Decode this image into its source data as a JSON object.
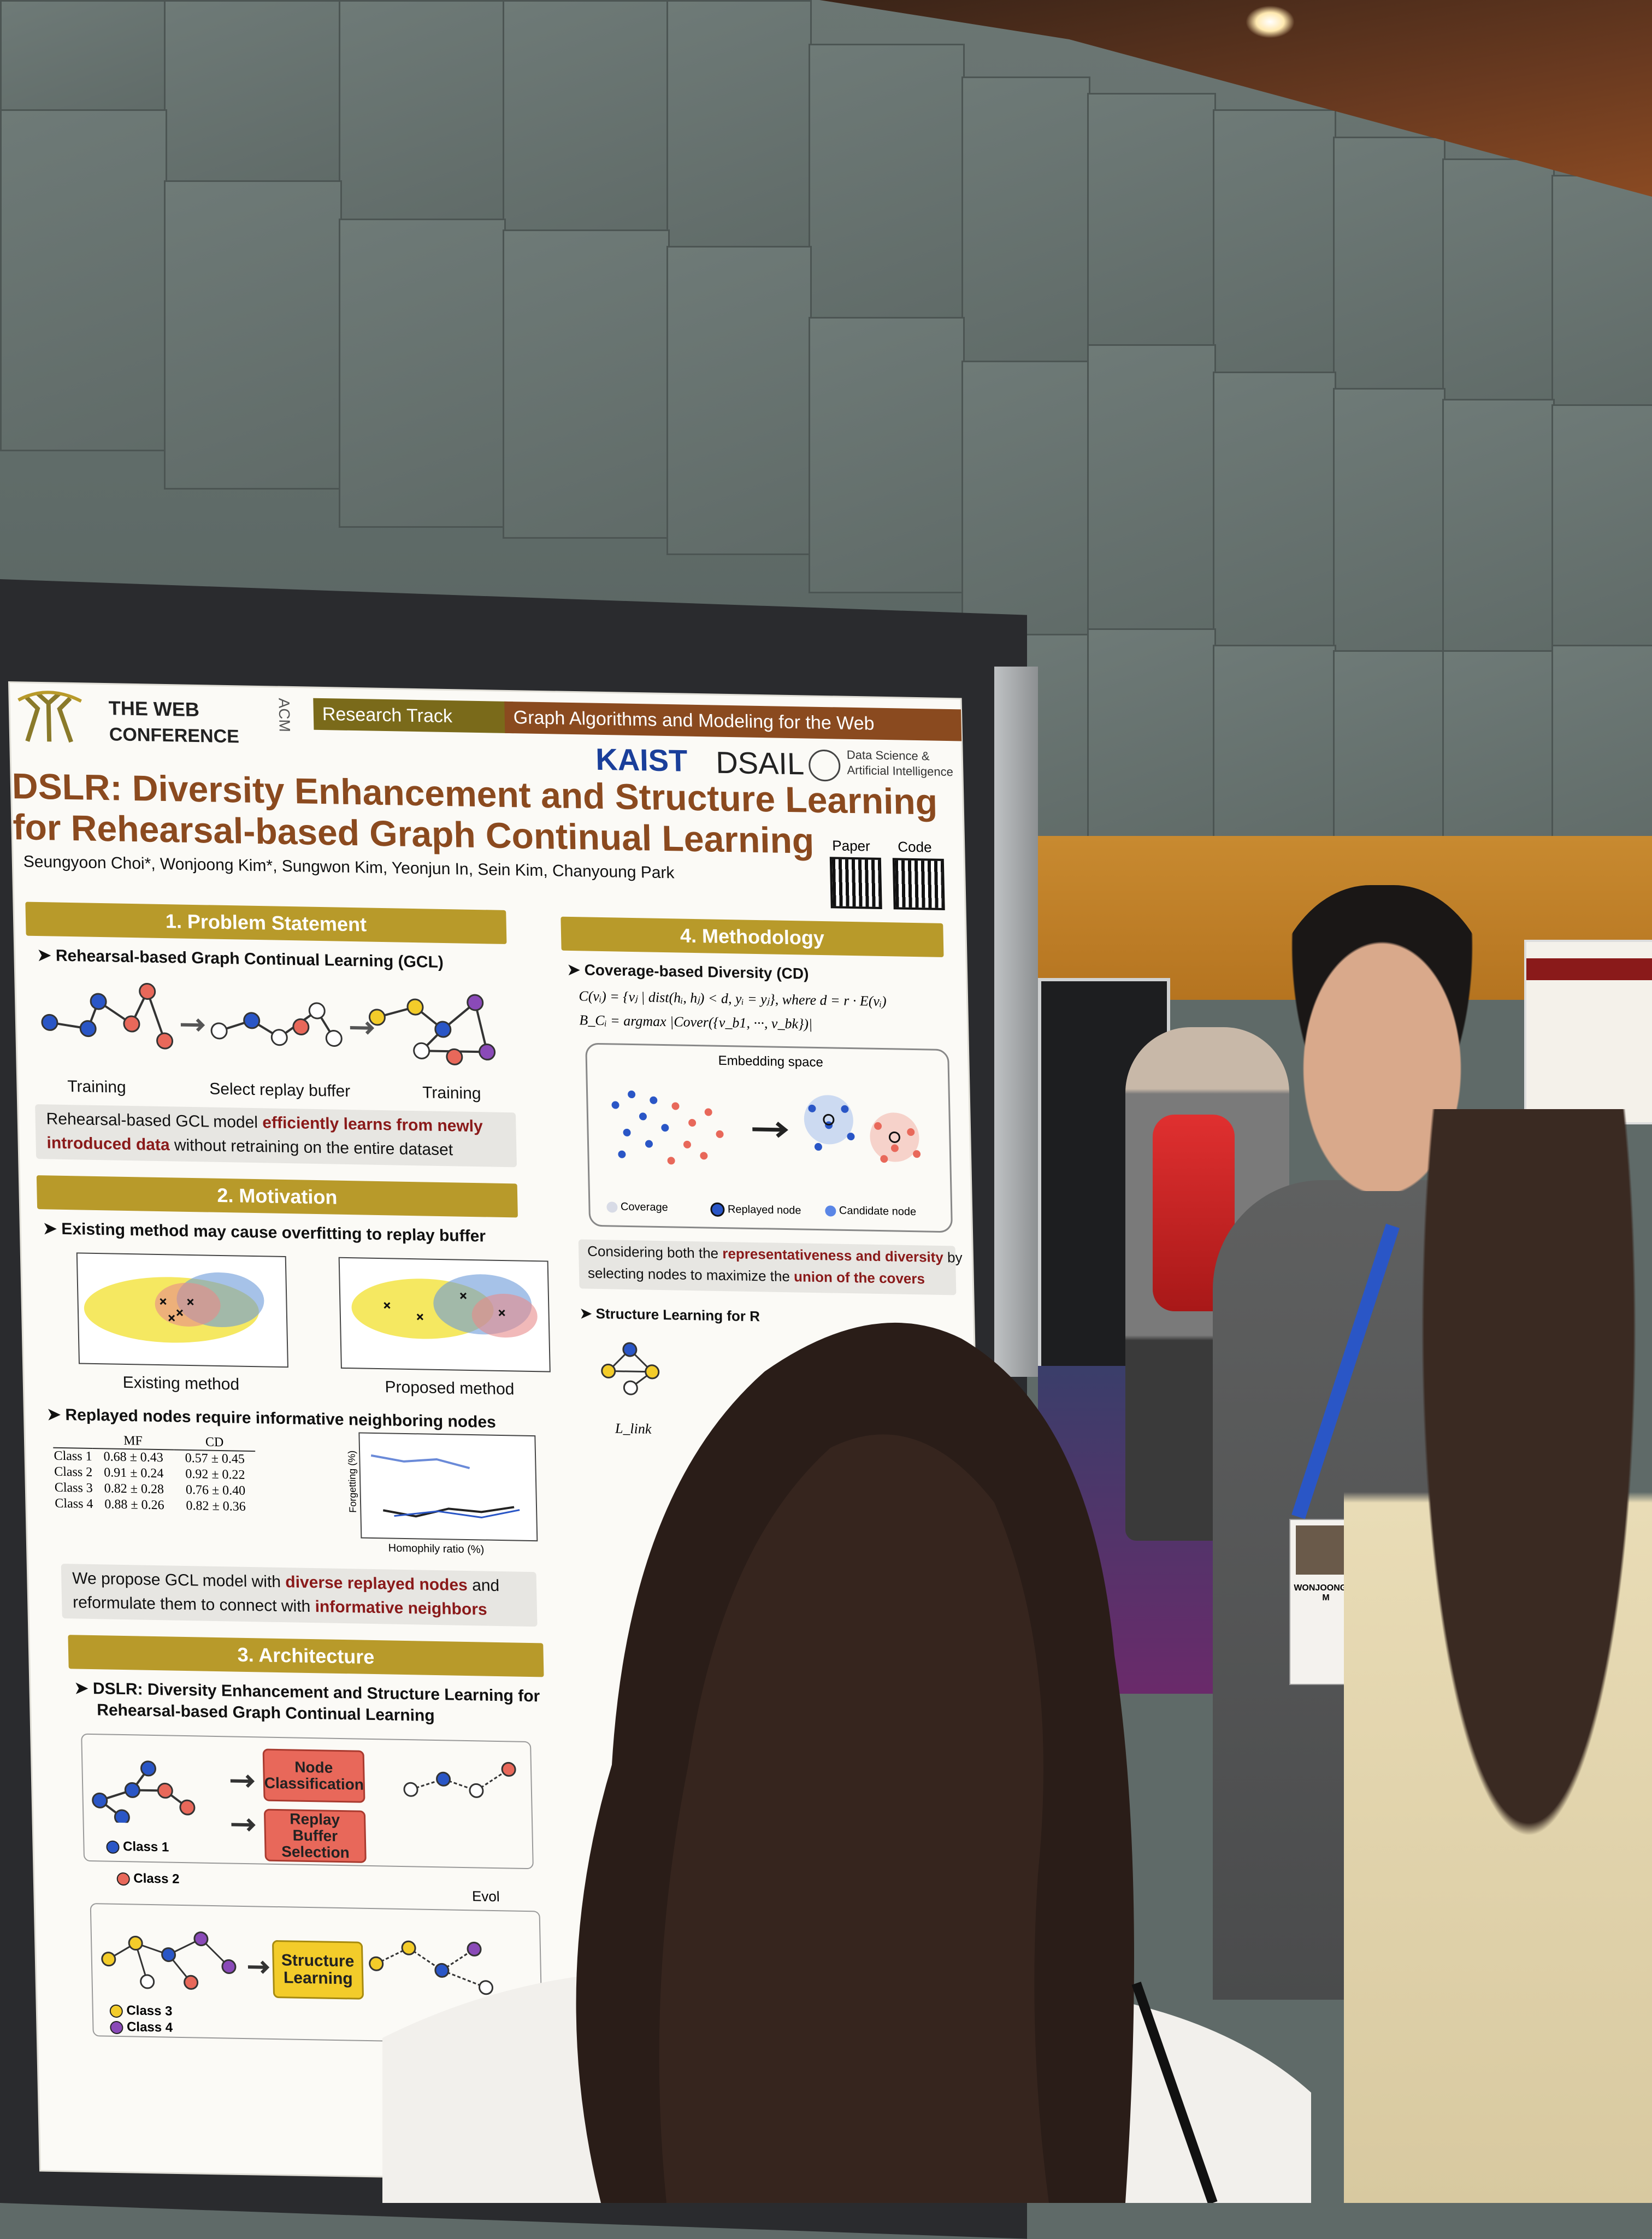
{
  "poster": {
    "conference_name_top": "THE WEB",
    "conference_name_bottom": "CONFERENCE",
    "acm": "ACM",
    "track": "Research Track",
    "topic": "Graph Algorithms and Modeling for the Web",
    "org_kaist": "KAIST",
    "org_dsail": "DSAIL",
    "org_dsail_sub1": "Data Science &",
    "org_dsail_sub2": "Artificial Intelligence",
    "title_line1": "DSLR: Diversity Enhancement and Structure Learning",
    "title_line2": "for Rehearsal-based Graph Continual Learning",
    "authors": "Seungyoon Choi*, Wonjoong Kim*, Sungwon Kim, Yeonjun In, Sein Kim, Chanyoung Park",
    "qr_paper": "Paper",
    "qr_code": "Code",
    "sec1": {
      "header": "1. Problem Statement",
      "subtitle": "Rehearsal-based Graph Continual Learning (GCL)",
      "labels": [
        "Training",
        "Select replay buffer",
        "Training"
      ],
      "summary_a": "Rehearsal-based GCL model ",
      "summary_b": "efficiently learns from newly",
      "summary_c": "introduced data",
      "summary_d": " without retraining on the entire dataset"
    },
    "sec2": {
      "header": "2. Motivation",
      "subtitle1": "Existing method may cause overfitting to replay buffer",
      "plot_left_label": "Existing method",
      "plot_right_label": "Proposed method",
      "subtitle2": "Replayed nodes require informative neighboring nodes",
      "table_headers": [
        "",
        "MF",
        "CD"
      ],
      "table_rows": [
        [
          "Class 1",
          "0.68 ± 0.43",
          "0.57 ± 0.45"
        ],
        [
          "Class 2",
          "0.91 ± 0.24",
          "0.92 ± 0.22"
        ],
        [
          "Class 3",
          "0.82 ± 0.28",
          "0.76 ± 0.40"
        ],
        [
          "Class 4",
          "0.88 ± 0.26",
          "0.82 ± 0.36"
        ]
      ],
      "line_xlabel": "Homophily ratio (%)",
      "line_ylabel": "Forgetting (%)",
      "summary_a": "We propose GCL model with ",
      "summary_b": "diverse replayed nodes",
      "summary_c": " and",
      "summary_d": "reformulate them to connect with ",
      "summary_e": "informative neighbors"
    },
    "sec3": {
      "header": "3. Architecture",
      "subtitle_line1": "DSLR: Diversity Enhancement and Structure Learning for",
      "subtitle_line2": "Rehearsal-based Graph Continual Learning",
      "btn_node": "Node Classification",
      "btn_replay": "Replay Buffer Selection",
      "btn_structure": "Structure Learning",
      "class1": "Class 1",
      "class2": "Class 2",
      "class3": "Class 3",
      "class4": "Class 4",
      "evolve": "Evol"
    },
    "sec4": {
      "header": "4. Methodology",
      "subtitle1": "Coverage-based Diversity (CD)",
      "formula1": "C(vᵢ) = {vⱼ | dist(hᵢ, hⱼ) < d,  yᵢ = yⱼ}, where d = r · E(vᵢ)",
      "formula2": "B_Cᵢ = argmax |Cover({v_b1, ···, v_bk})|",
      "embed_title": "Embedding space",
      "legend_coverage": "Coverage",
      "legend_replayed": "Replayed node",
      "legend_candidate": "Candidate node",
      "summary_a": "Considering both the ",
      "summary_b": "representativeness and diversity",
      "summary_c": " by",
      "summary_d": "selecting nodes to maximize the ",
      "summary_e": "union of the covers",
      "subtitle2": "Structure Learning for R",
      "loss": "L_link"
    }
  },
  "background": {
    "badge_name": "WONJOONG KIM"
  },
  "colors": {
    "poster_title": "#8b4a1f",
    "section_header": "#b89a2a",
    "highlight_red": "#8a1a1a",
    "node_blue": "#2a56c6",
    "node_red": "#e8685a",
    "node_yellow": "#f3cc2a",
    "node_purple": "#8a4ab8"
  }
}
